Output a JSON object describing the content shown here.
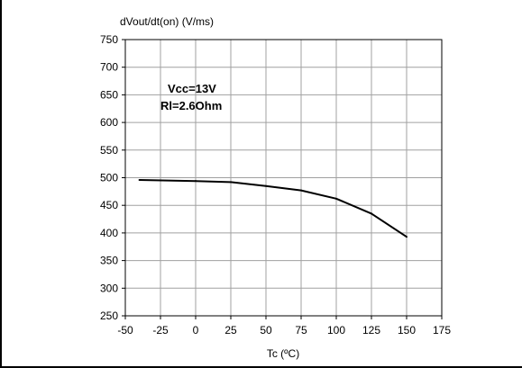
{
  "chart_data": {
    "type": "line",
    "ylabel": "dVout/dt(on) (V/ms)",
    "xlabel": "Tc (ºC)",
    "xlim": [
      -50,
      175
    ],
    "ylim": [
      250,
      750
    ],
    "x_ticks": [
      -50,
      -25,
      0,
      25,
      50,
      75,
      100,
      125,
      150,
      175
    ],
    "y_ticks": [
      250,
      300,
      350,
      400,
      450,
      500,
      550,
      600,
      650,
      700,
      750
    ],
    "grid": true,
    "annotations": [
      "Vcc=13V",
      "Rl=2.6Ohm"
    ],
    "series": [
      {
        "x": [
          -40,
          0,
          25,
          50,
          75,
          100,
          125,
          150
        ],
        "y": [
          496,
          494,
          492,
          485,
          477,
          462,
          435,
          393
        ]
      }
    ],
    "colors": {
      "line": "#000000",
      "grid": "#a0a0a0",
      "axis": "#000000"
    }
  }
}
